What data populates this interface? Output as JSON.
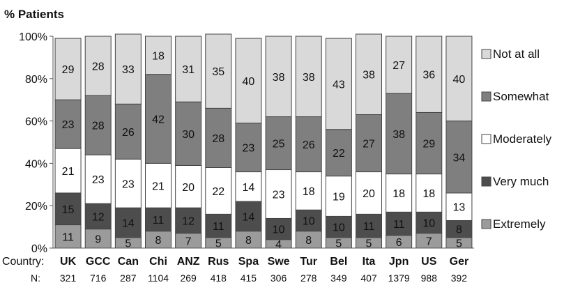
{
  "chart_data": {
    "type": "bar",
    "stacked": true,
    "ylabel": "% Patients",
    "ylim": [
      0,
      100
    ],
    "yticks": [
      "0%",
      "20%",
      "40%",
      "60%",
      "80%",
      "100%"
    ],
    "country_label": "Country:",
    "n_label": "N:",
    "categories": [
      "UK",
      "GCC",
      "Can",
      "Chi",
      "ANZ",
      "Rus",
      "Spa",
      "Swe",
      "Tur",
      "Bel",
      "Ita",
      "Jpn",
      "US",
      "Ger"
    ],
    "n_values": [
      "321",
      "716",
      "287",
      "1104",
      "269",
      "418",
      "415",
      "306",
      "278",
      "349",
      "407",
      "1379",
      "988",
      "392"
    ],
    "series": [
      {
        "name": "Extremely",
        "color": "#9b9b9b",
        "values": [
          11,
          9,
          5,
          8,
          7,
          5,
          8,
          4,
          8,
          5,
          5,
          6,
          7,
          5
        ]
      },
      {
        "name": "Very much",
        "color": "#4d4d4d",
        "values": [
          15,
          12,
          14,
          11,
          12,
          11,
          14,
          10,
          10,
          10,
          11,
          11,
          10,
          8
        ]
      },
      {
        "name": "Moderately",
        "color": "#ffffff",
        "values": [
          21,
          23,
          23,
          21,
          20,
          22,
          14,
          23,
          18,
          19,
          20,
          18,
          18,
          13
        ]
      },
      {
        "name": "Somewhat",
        "color": "#7f7f7f",
        "values": [
          23,
          28,
          26,
          42,
          30,
          28,
          23,
          25,
          26,
          22,
          27,
          38,
          29,
          34
        ]
      },
      {
        "name": "Not at all",
        "color": "#d9d9d9",
        "values": [
          29,
          28,
          33,
          18,
          31,
          35,
          40,
          38,
          38,
          43,
          38,
          27,
          36,
          40
        ]
      }
    ],
    "legend_order": [
      "Not at all",
      "Somewhat",
      "Moderately",
      "Very much",
      "Extremely"
    ],
    "legend_position": "right",
    "grid": false
  }
}
